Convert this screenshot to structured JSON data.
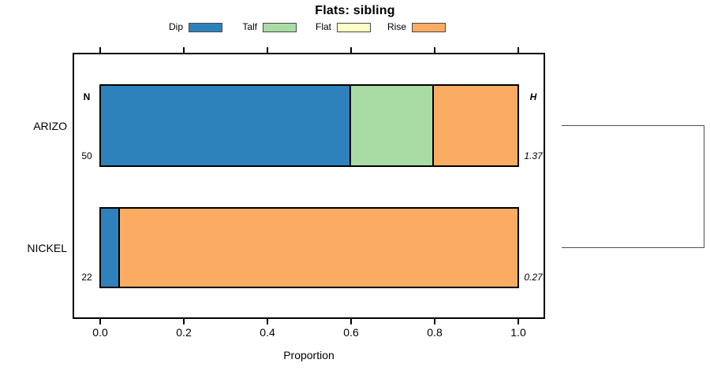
{
  "title": "Flats: sibling",
  "legend": [
    {
      "label": "Dip",
      "color": "#2E82BC"
    },
    {
      "label": "Talf",
      "color": "#A9DCA4"
    },
    {
      "label": "Flat",
      "color": "#FFFFC8"
    },
    {
      "label": "Rise",
      "color": "#FBAC62"
    }
  ],
  "chart_data": {
    "type": "bar",
    "orientation": "horizontal",
    "stacked": true,
    "title": "Flats: sibling",
    "xlabel": "Proportion",
    "xlim": [
      0,
      1
    ],
    "x_ticks": [
      0.0,
      0.2,
      0.4,
      0.6,
      0.8,
      1.0
    ],
    "grid": false,
    "legend_position": "top",
    "bar_outline_color": "#000000",
    "columns": {
      "n_header": "N",
      "h_header": "H"
    },
    "rows": [
      {
        "category": "ARIZO",
        "n": "50",
        "h": "1.37",
        "segments": [
          {
            "name": "Dip",
            "value": 0.6
          },
          {
            "name": "Talf",
            "value": 0.2
          },
          {
            "name": "Flat",
            "value": 0.0
          },
          {
            "name": "Rise",
            "value": 0.2
          }
        ]
      },
      {
        "category": "NICKEL",
        "n": "22",
        "h": "0.27",
        "segments": [
          {
            "name": "Dip",
            "value": 0.045
          },
          {
            "name": "Talf",
            "value": 0.0
          },
          {
            "name": "Flat",
            "value": 0.0
          },
          {
            "name": "Rise",
            "value": 0.955
          }
        ]
      }
    ],
    "dendrogram": {
      "clusters": [
        [
          "ARIZO",
          "NICKEL"
        ]
      ]
    }
  }
}
